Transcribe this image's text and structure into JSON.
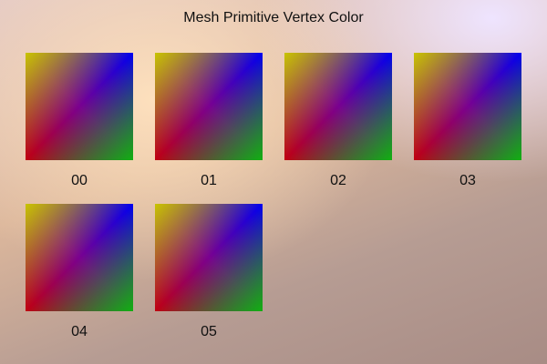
{
  "title": "Mesh Primitive Vertex Color",
  "vertex_colors": {
    "top_left": "#c8c400",
    "top_right": "#0000f0",
    "bottom_left": "#c00010",
    "bottom_right": "#10b010"
  },
  "items": [
    {
      "label": "00"
    },
    {
      "label": "01"
    },
    {
      "label": "02"
    },
    {
      "label": "03"
    },
    {
      "label": "04"
    },
    {
      "label": "05"
    }
  ]
}
